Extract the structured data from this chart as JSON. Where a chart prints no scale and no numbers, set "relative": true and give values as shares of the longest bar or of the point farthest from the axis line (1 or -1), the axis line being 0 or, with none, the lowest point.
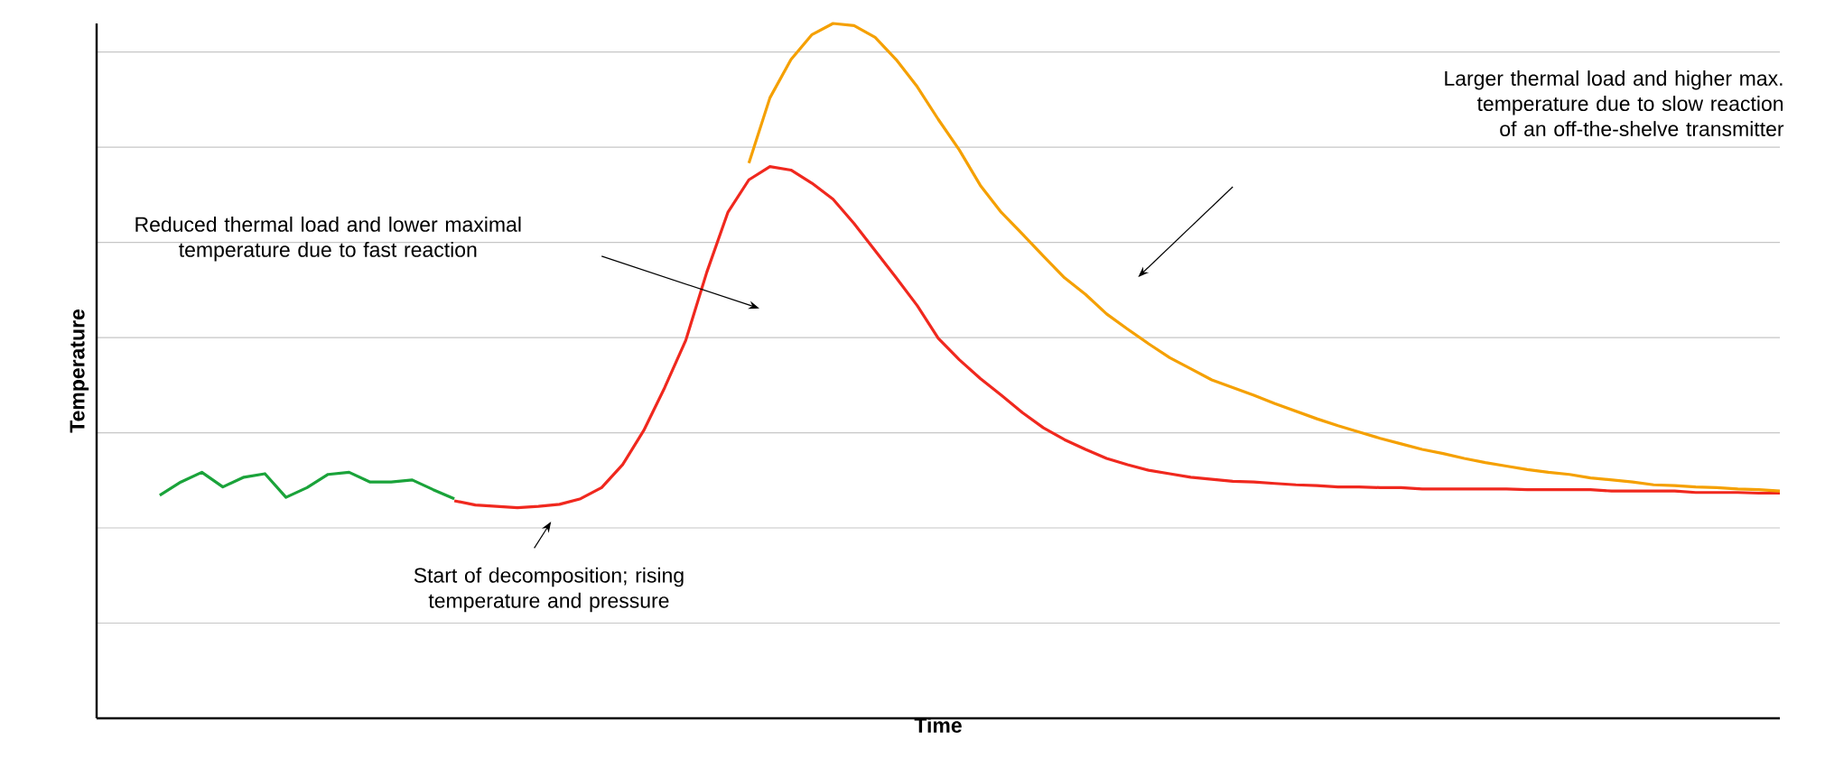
{
  "chart_data": {
    "type": "line",
    "relative": true,
    "xlabel": "Time",
    "ylabel": "Temperature",
    "grid": "y",
    "marker": "none",
    "line_style": "solid",
    "categories": [
      null,
      null,
      null,
      null,
      null,
      null,
      null,
      null,
      null,
      null,
      null,
      null,
      null,
      null,
      null,
      null,
      null,
      null,
      null,
      null,
      null,
      null,
      null,
      null,
      null,
      null,
      null,
      null,
      null,
      null,
      null,
      null,
      null,
      null,
      null,
      null,
      null,
      null,
      null,
      null,
      null,
      null,
      null,
      null,
      null,
      null,
      null,
      null,
      null,
      null,
      null,
      null,
      null,
      null,
      null,
      null,
      null,
      null,
      null,
      null,
      null,
      null,
      null,
      null,
      null,
      null,
      null,
      null,
      null,
      null,
      null,
      null,
      null,
      null,
      null,
      null,
      null,
      null,
      null,
      null,
      null
    ],
    "series": [
      {
        "color": "#1aa33a",
        "values": [
          null,
          null,
          null,
          0.321,
          0.34,
          0.354,
          0.333,
          0.347,
          0.352,
          0.318,
          0.332,
          0.351,
          0.354,
          0.34,
          0.34,
          0.343,
          0.329,
          0.316,
          null,
          null,
          null,
          null,
          null,
          null,
          null,
          null,
          null,
          null,
          null,
          null,
          null,
          null,
          null,
          null,
          null,
          null,
          null,
          null,
          null,
          null,
          null,
          null,
          null,
          null,
          null,
          null,
          null,
          null,
          null,
          null,
          null,
          null,
          null,
          null,
          null,
          null,
          null,
          null,
          null,
          null,
          null,
          null,
          null,
          null,
          null,
          null,
          null,
          null,
          null,
          null,
          null,
          null,
          null,
          null,
          null,
          null,
          null,
          null,
          null,
          null,
          null
        ]
      },
      {
        "color": "#f0281e",
        "values": [
          null,
          null,
          null,
          null,
          null,
          null,
          null,
          null,
          null,
          null,
          null,
          null,
          null,
          null,
          null,
          null,
          null,
          0.313,
          0.307,
          0.305,
          0.303,
          0.305,
          0.308,
          0.316,
          0.332,
          0.365,
          0.414,
          0.476,
          0.544,
          0.642,
          0.728,
          0.775,
          0.794,
          0.789,
          0.77,
          0.747,
          0.712,
          0.673,
          0.634,
          0.594,
          0.547,
          0.516,
          0.489,
          0.465,
          0.44,
          0.418,
          0.401,
          0.387,
          0.374,
          0.365,
          0.357,
          0.352,
          0.347,
          0.344,
          0.341,
          0.34,
          0.338,
          0.336,
          0.335,
          0.333,
          0.333,
          0.332,
          0.332,
          0.33,
          0.33,
          0.33,
          0.33,
          0.33,
          0.329,
          0.329,
          0.329,
          0.329,
          0.327,
          0.327,
          0.327,
          0.327,
          0.325,
          0.325,
          0.325,
          0.324,
          0.324
        ]
      },
      {
        "color": "#f5a000",
        "values": [
          null,
          null,
          null,
          null,
          null,
          null,
          null,
          null,
          null,
          null,
          null,
          null,
          null,
          null,
          null,
          null,
          null,
          null,
          null,
          null,
          null,
          null,
          null,
          null,
          null,
          null,
          null,
          null,
          null,
          null,
          null,
          0.799,
          0.893,
          0.948,
          0.984,
          1.0,
          0.997,
          0.98,
          0.948,
          0.909,
          0.862,
          0.818,
          0.767,
          0.728,
          0.697,
          0.665,
          0.634,
          0.61,
          0.582,
          0.56,
          0.539,
          0.519,
          0.503,
          0.487,
          0.476,
          0.465,
          0.453,
          0.442,
          0.431,
          0.421,
          0.412,
          0.403,
          0.395,
          0.387,
          0.381,
          0.374,
          0.368,
          0.363,
          0.358,
          0.354,
          0.351,
          0.346,
          0.343,
          0.34,
          0.336,
          0.335,
          0.333,
          0.332,
          0.33,
          0.329,
          0.327
        ]
      }
    ],
    "annotations": [
      "Reduced thermal load and lower maximal temperature due to fast reaction",
      "Larger thermal load and higher max. temperature due to slow reaction of an off-the-shelve transmitter",
      "Start of decomposition; rising temperature and pressure"
    ]
  }
}
